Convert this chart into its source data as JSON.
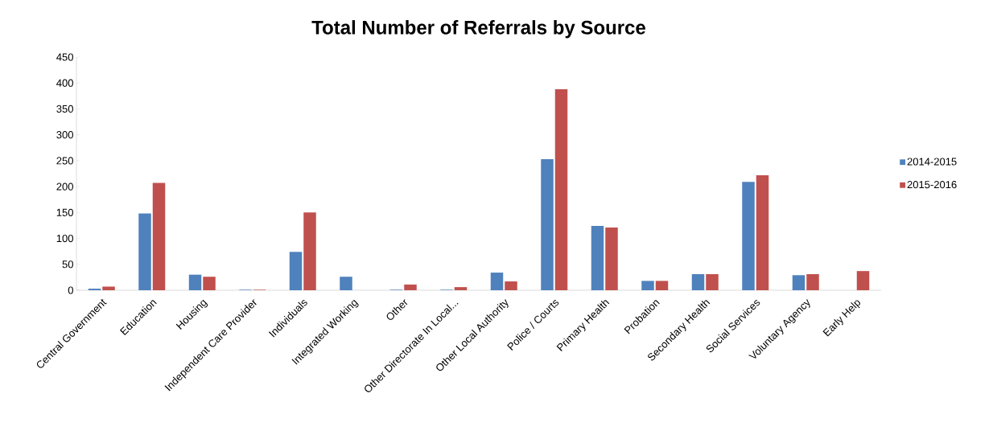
{
  "chart_data": {
    "type": "bar",
    "title": "Total Number of Referrals by Source",
    "categories": [
      "Central Government",
      "Education",
      "Housing",
      "Independent Care Provider",
      "Individuals",
      "Integrated Working",
      "Other",
      "Other Directorate In Local...",
      "Other Local Authority",
      "Police / Courts",
      "Primary Health",
      "Probation",
      "Secondary Health",
      "Social Services",
      "Voluntary Agency",
      "Early Help"
    ],
    "series": [
      {
        "name": "2014-2015",
        "color": "#4f81bd",
        "values": [
          3,
          148,
          30,
          1,
          74,
          26,
          1,
          1,
          34,
          253,
          124,
          18,
          31,
          209,
          29,
          null
        ]
      },
      {
        "name": "2015-2016",
        "color": "#c0504d",
        "values": [
          7,
          207,
          26,
          1,
          150,
          null,
          11,
          6,
          17,
          388,
          121,
          18,
          31,
          222,
          31,
          37
        ]
      }
    ],
    "ylim": [
      0,
      450
    ],
    "yticks": [
      0,
      50,
      100,
      150,
      200,
      250,
      300,
      350,
      400,
      450
    ],
    "grid": false,
    "legend": "right"
  }
}
